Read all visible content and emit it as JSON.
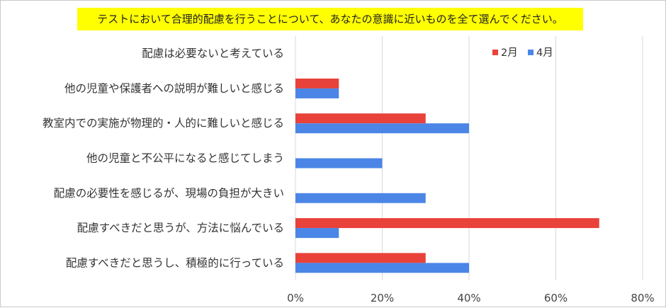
{
  "chart_data": {
    "type": "bar",
    "orientation": "horizontal",
    "title": "テストにおいて合理的配慮を行うことについて、あなたの意識に近いものを全て選んでください。",
    "categories": [
      "配慮は必要ないと考えている",
      "他の児童や保護者への説明が難しいと感じる",
      "教室内での実施が物理的・人的に難しいと感じる",
      "他の児童と不公平になると感じてしまう",
      "配慮の必要性を感じるが、現場の負担が大きい",
      "配慮すべきだと思うが、方法に悩んでいる",
      "配慮すべきだと思うし、積極的に行っている"
    ],
    "series": [
      {
        "name": "2月",
        "color": "#e8423a",
        "values": [
          0,
          10,
          30,
          0,
          0,
          70,
          30
        ]
      },
      {
        "name": "4月",
        "color": "#4b86e6",
        "values": [
          0,
          10,
          40,
          20,
          30,
          10,
          40
        ]
      }
    ],
    "xlim": [
      0,
      80
    ],
    "xticks": [
      "0%",
      "20%",
      "40%",
      "60%",
      "80%"
    ],
    "grid": true,
    "legend_position": "top-right"
  }
}
